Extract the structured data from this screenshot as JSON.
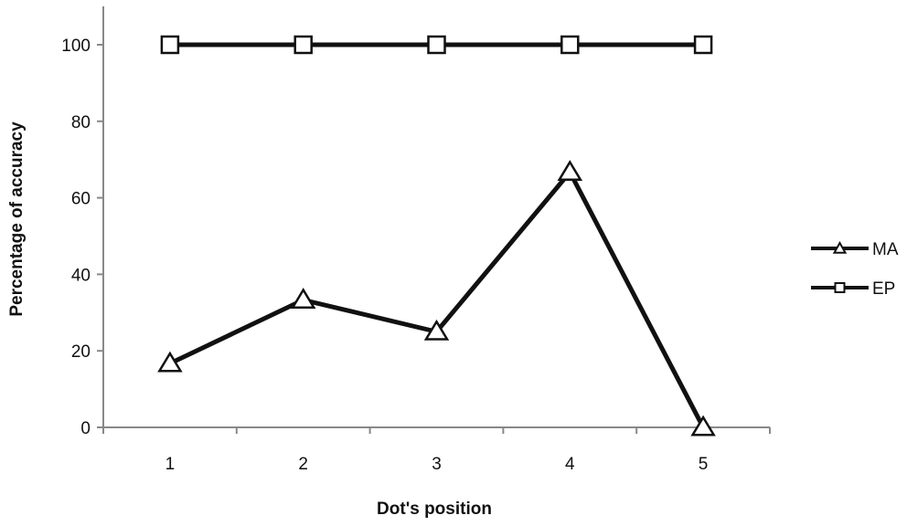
{
  "chart_data": {
    "type": "line",
    "title": "",
    "xlabel": "Dot's position",
    "ylabel": "Percentage of accuracy",
    "categories": [
      "1",
      "2",
      "3",
      "4",
      "5"
    ],
    "ylim": [
      0,
      100
    ],
    "yticks": [
      0,
      20,
      40,
      60,
      80,
      100
    ],
    "grid": false,
    "legend_position": "right",
    "series": [
      {
        "name": "MA",
        "marker": "triangle",
        "color": "#111111",
        "values": [
          16.7,
          33.3,
          25,
          66.7,
          0
        ]
      },
      {
        "name": "EP",
        "marker": "square",
        "color": "#111111",
        "values": [
          100,
          100,
          100,
          100,
          100
        ]
      }
    ]
  }
}
